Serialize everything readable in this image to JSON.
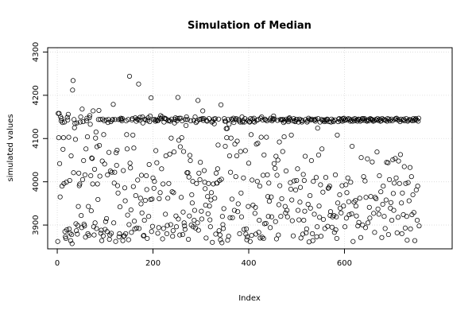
{
  "chart_data": {
    "type": "scatter",
    "title": "Simulation of Median",
    "xlabel": "Index",
    "ylabel": "simulated values",
    "xlim": [
      -20,
      825
    ],
    "ylim": [
      3845,
      4310
    ],
    "xticks": [
      0,
      200,
      400,
      600
    ],
    "yticks": [
      3900,
      4000,
      4100,
      4200,
      4300
    ],
    "grid": true,
    "series": [
      {
        "marker": "open-circle",
        "y": [
          3862,
          4158,
          4102,
          4158,
          4042,
          3965,
          4150,
          4141,
          4146,
          3990,
          4137,
          4075,
          4102,
          3996,
          4138,
          3885,
          3873,
          3869,
          3999,
          3889,
          4149,
          4143,
          4156,
          4103,
          3891,
          4003,
          3881,
          3864,
          4060,
          3878,
          3857,
          4212,
          4234,
          4021,
          4144,
          4125,
          4135,
          4098,
          3903,
          3887,
          4136,
          3879,
          3899,
          3943,
          4020,
          3991,
          3995,
          4138,
          4150,
          3922,
          3894,
          4168,
          4005,
          4139,
          4049,
          3902,
          3898,
          4016,
          3872,
          4076,
          4141,
          4147,
          4104,
          3880,
          3943,
          3876,
          4148,
          4153,
          4133,
          4014,
          3933,
          4055,
          4054,
          3995,
          4164,
          3896,
          3877,
          4029,
          3905,
          4101,
          4115,
          3892,
          4081,
          3995,
          3959,
          4144,
          4165,
          4084,
          4013,
          4144,
          3881,
          3888,
          3864,
          4048,
          4145,
          3875,
          4109,
          4141,
          4041,
          3890,
          3908,
          4143,
          3915,
          3885,
          4016,
          4137,
          4144,
          4068,
          3867,
          3877,
          4025,
          4139,
          3881,
          4022,
          4143,
          4144,
          4179,
          3905,
          3997,
          4022,
          4144,
          3862,
          4067,
          4038,
          4073,
          3991,
          3974,
          4144,
          3873,
          3880,
          3942,
          4144,
          4147,
          4144,
          4141,
          4146,
          3864,
          4026,
          3875,
          3875,
          3986,
          3956,
          3880,
          4141,
          4109,
          4076,
          3923,
          4144,
          3866,
          3901,
          4244,
          4043,
          4032,
          3935,
          3883,
          4143,
          4146,
          4108,
          3989,
          4078,
          3909,
          3891,
          4148,
          3968,
          4140,
          3893,
          4145,
          4004,
          4144,
          4226,
          3892,
          4142,
          4149,
          3962,
          3949,
          4015,
          3928,
          4150,
          4136,
          3875,
          3876,
          3911,
          4145,
          3957,
          4143,
          4014,
          3982,
          3869,
          4142,
          4148,
          3920,
          4040,
          4139,
          4152,
          3959,
          4194,
          3885,
          3960,
          3897,
          4009,
          4144,
          3985,
          4001,
          4144,
          4140,
          4072,
          4143,
          4044,
          4141,
          3881,
          4142,
          3894,
          3961,
          4147,
          3975,
          4153,
          4146,
          4030,
          4150,
          3868,
          3995,
          3892,
          4138,
          4146,
          4147,
          3925,
          4060,
          4145,
          3880,
          3899,
          3962,
          4141,
          3996,
          4142,
          4064,
          4140,
          3901,
          4101,
          4145,
          3977,
          3874,
          3887,
          3975,
          4069,
          4136,
          4144,
          4148,
          3921,
          3896,
          4141,
          4146,
          4195,
          3914,
          4096,
          4147,
          3877,
          4081,
          4147,
          3964,
          4102,
          4141,
          3878,
          3930,
          4070,
          3905,
          3898,
          3890,
          4144,
          4130,
          4150,
          4021,
          4144,
          4021,
          3867,
          4011,
          3921,
          4061,
          4049,
          4141,
          3900,
          3970,
          3951,
          4001,
          3896,
          4142,
          3911,
          3934,
          4150,
          3893,
          4137,
          3996,
          4140,
          3905,
          4188,
          3888,
          4020,
          4144,
          4005,
          4045,
          4145,
          3932,
          3914,
          4146,
          4164,
          4142,
          4146,
          4026,
          3999,
          3984,
          3946,
          3870,
          4142,
          4140,
          3966,
          3926,
          3996,
          4146,
          3944,
          3912,
          3896,
          3958,
          3975,
          4138,
          3860,
          4140,
          3995,
          4145,
          4134,
          3962,
          4146,
          3879,
          4020,
          3997,
          3997,
          4030,
          4085,
          4145,
          3887,
          4003,
          3877,
          3866,
          4178,
          4006,
          3859,
          3920,
          3901,
          3892,
          3938,
          4146,
          4140,
          4082,
          4140,
          4123,
          4102,
          4123,
          3865,
          4144,
          3874,
          4133,
          4060,
          3917,
          4022,
          4101,
          4145,
          3960,
          3917,
          4143,
          4147,
          4137,
          3934,
          4087,
          4144,
          4012,
          4146,
          4060,
          4094,
          3931,
          3949,
          4144,
          4141,
          3880,
          4138,
          4070,
          3974,
          3919,
          4150,
          4138,
          4141,
          4009,
          3890,
          4138,
          4146,
          4072,
          3879,
          3891,
          3866,
          3873,
          4142,
          3943,
          4043,
          4139,
          4138,
          3862,
          4146,
          4109,
          3876,
          4004,
          4145,
          3946,
          4140,
          4147,
          4138,
          3927,
          3941,
          3879,
          4087,
          4142,
          4001,
          4089,
          4144,
          3883,
          3911,
          3990,
          3870,
          4147,
          4103,
          4150,
          3872,
          4143,
          4015,
          3869,
          4062,
          3903,
          4145,
          4143,
          3904,
          4103,
          4141,
          4016,
          3966,
          3920,
          3997,
          3955,
          4143,
          3894,
          4147,
          3965,
          3919,
          4141,
          4144,
          4146,
          4152,
          4042,
          4145,
          4031,
          3908,
          4059,
          3868,
          4015,
          4142,
          4050,
          3877,
          3947,
          4092,
          3991,
          4144,
          3920,
          4143,
          3961,
          4144,
          4070,
          4144,
          4137,
          4104,
          4140,
          3943,
          3928,
          4025,
          4145,
          3934,
          3919,
          4143,
          4139,
          4146,
          4148,
          4143,
          3998,
          3983,
          4108,
          3958,
          3910,
          4141,
          3875,
          4146,
          4002,
          4141,
          4139,
          3981,
          4144,
          4003,
          4144,
          4030,
          3934,
          4138,
          3912,
          4145,
          3953,
          3987,
          3870,
          4143,
          4138,
          4141,
          3879,
          4017,
          3911,
          4003,
          3932,
          4059,
          4144,
          3882,
          3891,
          4138,
          4141,
          3948,
          4147,
          3861,
          4144,
          3968,
          3939,
          4143,
          4049,
          4145,
          3880,
          3864,
          4001,
          4143,
          3925,
          4143,
          4140,
          4145,
          4010,
          3873,
          3896,
          4124,
          4146,
          4062,
          3944,
          3918,
          4138,
          3993,
          3874,
          4144,
          4076,
          4142,
          3976,
          3913,
          4143,
          4139,
          3892,
          4143,
          4010,
          4140,
          4144,
          4145,
          3897,
          3985,
          3986,
          4139,
          3990,
          3922,
          3931,
          4138,
          4145,
          3895,
          3919,
          4142,
          4139,
          3922,
          3883,
          4143,
          4016,
          3889,
          3919,
          3869,
          4108,
          3951,
          4139,
          4145,
          4146,
          3970,
          3939,
          4141,
          3928,
          4145,
          3991,
          4140,
          4146,
          3944,
          4147,
          4142,
          3896,
          4143,
          3993,
          3916,
          3975,
          4143,
          4009,
          4146,
          3954,
          3924,
          4145,
          4140,
          3999,
          4142,
          3926,
          4082,
          4140,
          3862,
          4145,
          3953,
          4141,
          4146,
          3957,
          3944,
          3921,
          4143,
          4140,
          3898,
          4145,
          3906,
          4144,
          3962,
          4140,
          3871,
          4056,
          4142,
          4146,
          3900,
          4146,
          4012,
          4142,
          4146,
          4002,
          3894,
          3964,
          4142,
          4140,
          4053,
          3905,
          4144,
          4141,
          3941,
          3916,
          4146,
          3966,
          4145,
          4144,
          4046,
          4143,
          4140,
          3927,
          4141,
          3883,
          3964,
          4144,
          3961,
          4143,
          4069,
          4146,
          3937,
          4142,
          3925,
          4014,
          4145,
          4140,
          3977,
          4141,
          3871,
          4146,
          3948,
          3990,
          4144,
          3920,
          4143,
          3892,
          4142,
          3958,
          4045,
          4140,
          4146,
          4044,
          3878,
          4145,
          4005,
          4141,
          3939,
          3952,
          4145,
          3911,
          4141,
          4051,
          3973,
          3934,
          3997,
          4144,
          4054,
          4146,
          4009,
          4147,
          3882,
          4143,
          3918,
          4048,
          4143,
          3996,
          4139,
          4063,
          4145,
          3951,
          3880,
          3974,
          4142,
          3924,
          4145,
          4035,
          4141,
          3893,
          3996,
          4146,
          3920,
          3865,
          4140,
          3998,
          4142,
          3956,
          4144,
          4033,
          3891,
          4143,
          4012,
          3924,
          4141,
          3970,
          4146,
          3929,
          4142,
          3864,
          4144,
          4146,
          3981,
          4143,
          3911,
          3990,
          4140,
          4147,
          3898
        ]
      }
    ]
  }
}
